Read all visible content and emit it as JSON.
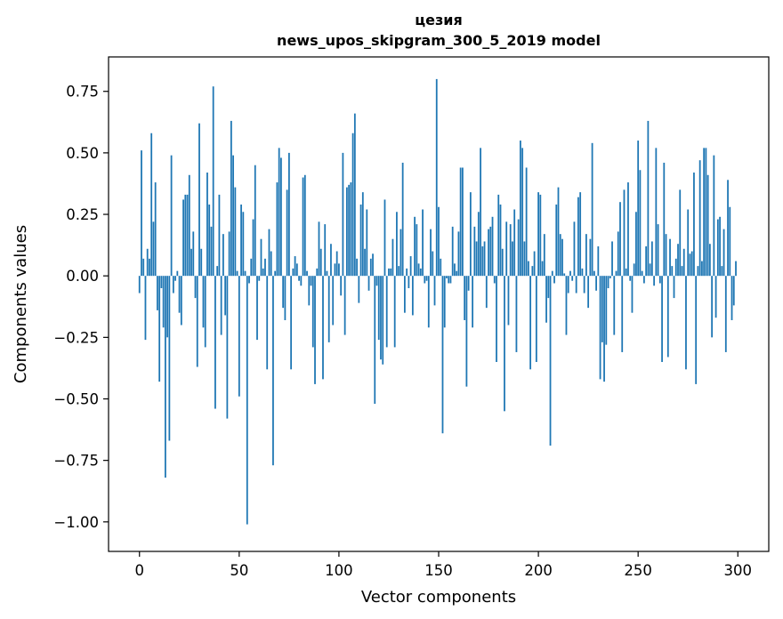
{
  "chart_data": {
    "type": "bar",
    "title_line1": "цезия",
    "title_line2": "news_upos_skipgram_300_5_2019 model",
    "xlabel": "Vector components",
    "ylabel": "Components values",
    "xlim": [
      -15.5,
      315.5
    ],
    "ylim": [
      -1.12,
      0.89
    ],
    "xticks": [
      0,
      50,
      100,
      150,
      200,
      250,
      300
    ],
    "xtick_labels": [
      "0",
      "50",
      "100",
      "150",
      "200",
      "250",
      "300"
    ],
    "yticks": [
      0.75,
      0.5,
      0.25,
      0.0,
      -0.25,
      -0.5,
      -0.75,
      -1.0
    ],
    "ytick_labels": [
      "0.75",
      "0.50",
      "0.25",
      "0.00",
      "−0.25",
      "−0.50",
      "−0.75",
      "−1.00"
    ],
    "bar_color": "#1f77b4",
    "values": [
      -0.07,
      0.51,
      0.07,
      -0.26,
      0.11,
      0.07,
      0.58,
      0.22,
      0.38,
      -0.14,
      -0.43,
      -0.05,
      -0.21,
      -0.82,
      -0.25,
      -0.67,
      0.49,
      -0.07,
      -0.02,
      0.02,
      -0.15,
      -0.2,
      0.31,
      0.33,
      0.33,
      0.41,
      0.11,
      0.18,
      -0.09,
      -0.37,
      0.62,
      0.11,
      -0.21,
      -0.29,
      0.42,
      0.29,
      0.2,
      0.77,
      -0.54,
      0.04,
      0.33,
      -0.24,
      0.17,
      -0.16,
      -0.58,
      0.18,
      0.63,
      0.49,
      0.36,
      0.02,
      -0.49,
      0.29,
      0.26,
      0.02,
      -1.01,
      -0.03,
      0.07,
      0.23,
      0.45,
      -0.26,
      -0.02,
      0.15,
      0.03,
      0.07,
      -0.38,
      0.19,
      0.1,
      -0.77,
      0.02,
      0.38,
      0.52,
      0.48,
      -0.13,
      -0.18,
      0.35,
      0.5,
      -0.38,
      0.03,
      0.08,
      0.05,
      -0.02,
      -0.04,
      0.4,
      0.41,
      0.02,
      -0.12,
      -0.04,
      -0.29,
      -0.44,
      0.03,
      0.22,
      0.11,
      -0.42,
      0.21,
      0.02,
      -0.27,
      0.13,
      -0.2,
      0.05,
      0.1,
      0.05,
      -0.08,
      0.5,
      -0.24,
      0.36,
      0.37,
      0.38,
      0.58,
      0.66,
      0.07,
      -0.11,
      0.29,
      0.34,
      0.11,
      0.27,
      -0.06,
      0.07,
      0.09,
      -0.52,
      -0.04,
      -0.26,
      -0.34,
      -0.36,
      0.31,
      -0.29,
      0.03,
      0.03,
      0.15,
      -0.29,
      0.26,
      0.04,
      0.19,
      0.46,
      -0.15,
      0.03,
      -0.05,
      0.08,
      -0.16,
      0.24,
      0.21,
      0.05,
      0.03,
      0.27,
      -0.03,
      -0.02,
      -0.21,
      0.19,
      0.1,
      -0.12,
      0.8,
      0.28,
      0.07,
      -0.64,
      -0.21,
      -0.01,
      -0.03,
      -0.03,
      0.2,
      0.05,
      0.02,
      0.18,
      0.44,
      0.44,
      -0.18,
      -0.45,
      -0.06,
      0.34,
      -0.21,
      0.2,
      0.14,
      0.26,
      0.52,
      0.12,
      0.14,
      -0.13,
      0.19,
      0.2,
      0.24,
      -0.03,
      -0.35,
      0.33,
      0.29,
      0.11,
      -0.55,
      0.22,
      -0.2,
      0.21,
      0.14,
      0.27,
      -0.31,
      0.23,
      0.55,
      0.52,
      0.14,
      0.44,
      0.06,
      -0.38,
      0.04,
      0.1,
      -0.35,
      0.34,
      0.33,
      0.06,
      0.17,
      -0.19,
      -0.09,
      -0.69,
      0.02,
      -0.03,
      0.29,
      0.36,
      0.17,
      0.15,
      0.01,
      -0.24,
      -0.07,
      0.02,
      -0.02,
      0.22,
      -0.07,
      0.32,
      0.34,
      0.03,
      -0.07,
      0.17,
      -0.13,
      0.15,
      0.54,
      0.02,
      -0.06,
      0.12,
      -0.42,
      -0.27,
      -0.43,
      -0.28,
      -0.05,
      -0.01,
      0.14,
      -0.24,
      0.02,
      0.18,
      0.3,
      -0.31,
      0.35,
      0.03,
      0.38,
      -0.02,
      -0.15,
      0.05,
      0.26,
      0.55,
      0.43,
      0.02,
      -0.03,
      0.12,
      0.63,
      0.05,
      0.14,
      -0.04,
      0.52,
      0.21,
      -0.03,
      -0.35,
      0.46,
      0.17,
      -0.33,
      0.15,
      0.04,
      -0.09,
      0.07,
      0.13,
      0.35,
      0.04,
      0.11,
      -0.38,
      0.27,
      0.09,
      0.1,
      0.42,
      -0.44,
      0.04,
      0.47,
      0.06,
      0.52,
      0.52,
      0.41,
      0.13,
      -0.25,
      0.49,
      -0.17,
      0.23,
      0.24,
      0.04,
      0.19,
      -0.31,
      0.39,
      0.28,
      -0.18,
      -0.12,
      0.06
    ]
  }
}
